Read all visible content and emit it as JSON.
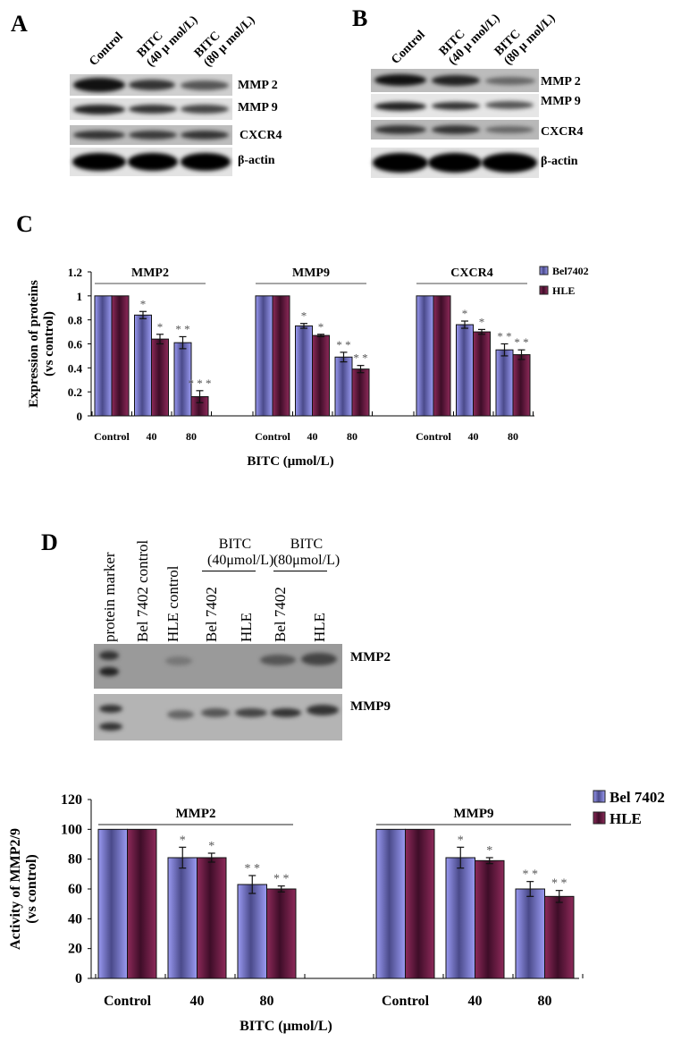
{
  "panel_a": {
    "letter": "A",
    "lanes": [
      {
        "line1": "Control",
        "line2": ""
      },
      {
        "line1": "BITC",
        "line2": "(40 μ mol/L)"
      },
      {
        "line1": "BITC",
        "line2": "(80 μ mol/L)"
      }
    ],
    "rows": [
      "MMP 2",
      "MMP 9",
      "CXCR4",
      "β-actin"
    ]
  },
  "panel_b": {
    "letter": "B",
    "lanes": [
      {
        "line1": "Control",
        "line2": ""
      },
      {
        "line1": "BITC",
        "line2": "(40 μ mol/L)"
      },
      {
        "line1": "BITC",
        "line2": "(80 μ mol/L)"
      }
    ],
    "rows": [
      "MMP 2",
      "MMP 9",
      "CXCR4",
      "β-actin"
    ]
  },
  "panel_c": {
    "letter": "C"
  },
  "panel_d": {
    "letter": "D",
    "lanes": [
      "protein marker",
      "Bel 7402 control",
      "HLE control",
      "Bel 7402",
      "HLE",
      "Bel 7402",
      "HLE"
    ],
    "groups": [
      {
        "line1": "BITC",
        "line2": "(40μmol/L)"
      },
      {
        "line1": "BITC",
        "line2": "(80μmol/L)"
      }
    ],
    "rows": [
      "MMP2",
      "MMP9"
    ]
  },
  "chart_data": [
    {
      "id": "panel_c_chart",
      "type": "bar",
      "title": "",
      "xlabel": "BITC (μmol/L)",
      "ylabel": "Expression of  proteins (vs control)",
      "ylim": [
        0,
        1.2
      ],
      "yticks": [
        "0",
        "0.2",
        "0.4",
        "0.6",
        "0.8",
        "1",
        "1.2"
      ],
      "groups": [
        "MMP2",
        "MMP9",
        "CXCR4"
      ],
      "categories": [
        "Control",
        "40",
        "80"
      ],
      "legend_position": "right-top",
      "series": [
        {
          "name": "Bel7402",
          "color": "#8f8fe8",
          "values": {
            "MMP2": [
              1.0,
              0.84,
              0.61
            ],
            "MMP9": [
              1.0,
              0.75,
              0.49
            ],
            "CXCR4": [
              1.0,
              0.76,
              0.55
            ]
          },
          "errors": {
            "MMP2": [
              0,
              0.03,
              0.05
            ],
            "MMP9": [
              0,
              0.02,
              0.04
            ],
            "CXCR4": [
              0,
              0.03,
              0.05
            ]
          },
          "significance": {
            "MMP2": [
              "",
              "*",
              "**"
            ],
            "MMP9": [
              "",
              "*",
              "**"
            ],
            "CXCR4": [
              "",
              "*",
              "**"
            ]
          }
        },
        {
          "name": "HLE",
          "color": "#7a1f4f",
          "values": {
            "MMP2": [
              1.0,
              0.64,
              0.16
            ],
            "MMP9": [
              1.0,
              0.67,
              0.39
            ],
            "CXCR4": [
              1.0,
              0.7,
              0.51
            ]
          },
          "errors": {
            "MMP2": [
              0,
              0.04,
              0.05
            ],
            "MMP9": [
              0,
              0.01,
              0.03
            ],
            "CXCR4": [
              0,
              0.02,
              0.04
            ]
          },
          "significance": {
            "MMP2": [
              "",
              "*",
              "***"
            ],
            "MMP9": [
              "",
              "*",
              "**"
            ],
            "CXCR4": [
              "",
              "*",
              "**"
            ]
          }
        }
      ]
    },
    {
      "id": "panel_d_chart",
      "type": "bar",
      "title": "",
      "xlabel": "BITC (μmol/L)",
      "ylabel": "Activity of MMP2/9 (vs control)",
      "ylim": [
        0,
        120
      ],
      "yticks": [
        "0",
        "20",
        "40",
        "60",
        "80",
        "100",
        "120"
      ],
      "groups": [
        "MMP2",
        "MMP9"
      ],
      "categories": [
        "Control",
        "40",
        "80"
      ],
      "legend_position": "right-top",
      "series": [
        {
          "name": "Bel 7402",
          "color": "#8f8fe8",
          "values": {
            "MMP2": [
              100,
              81,
              63
            ],
            "MMP9": [
              100,
              81,
              60
            ]
          },
          "errors": {
            "MMP2": [
              0,
              7,
              6
            ],
            "MMP9": [
              0,
              7,
              5
            ]
          },
          "significance": {
            "MMP2": [
              "",
              "*",
              "**"
            ],
            "MMP9": [
              "",
              "*",
              "**"
            ]
          }
        },
        {
          "name": "HLE",
          "color": "#7a1f4f",
          "values": {
            "MMP2": [
              100,
              81,
              60
            ],
            "MMP9": [
              100,
              79,
              55
            ]
          },
          "errors": {
            "MMP2": [
              0,
              3,
              2
            ],
            "MMP9": [
              0,
              2,
              4
            ]
          },
          "significance": {
            "MMP2": [
              "",
              "*",
              "**"
            ],
            "MMP9": [
              "",
              "*",
              "**"
            ]
          }
        }
      ]
    }
  ]
}
